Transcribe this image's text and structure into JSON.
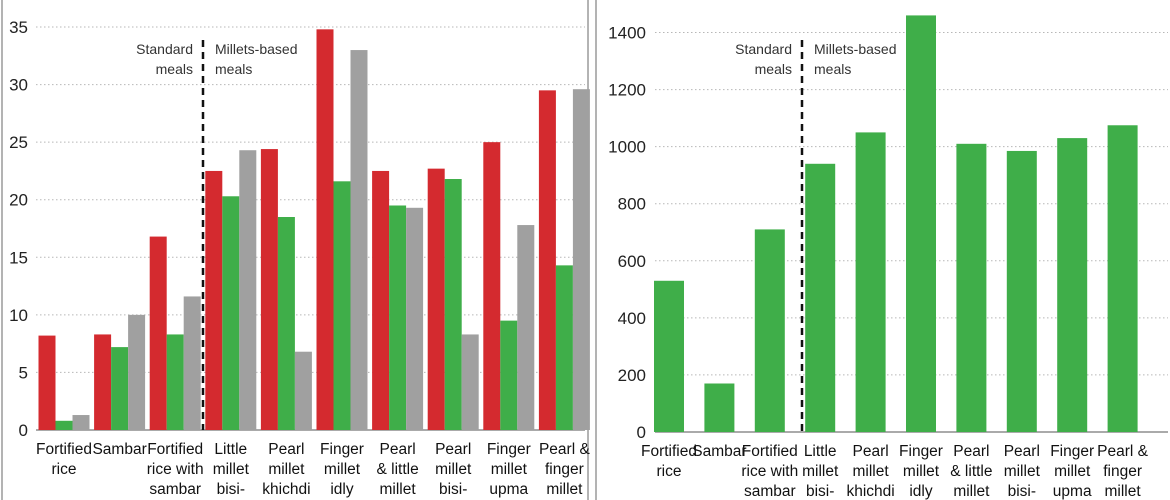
{
  "chart_data": [
    {
      "type": "bar",
      "categories": [
        [
          "Fortified",
          "rice"
        ],
        [
          "Sambar"
        ],
        [
          "Fortified",
          "rice with",
          "sambar"
        ],
        [
          "Little",
          "millet",
          "bisi-"
        ],
        [
          "Pearl",
          "millet",
          "khichdi"
        ],
        [
          "Finger",
          "millet",
          "idly"
        ],
        [
          "Pearl",
          "& little",
          "millet"
        ],
        [
          "Pearl",
          "millet",
          "bisi-"
        ],
        [
          "Finger",
          "millet",
          "upma"
        ],
        [
          "Pearl &",
          "finger",
          "millet"
        ]
      ],
      "series": [
        {
          "values": [
            8.2,
            8.3,
            16.8,
            22.5,
            24.4,
            34.8,
            22.5,
            22.7,
            25.0,
            29.5
          ]
        },
        {
          "values": [
            0.8,
            7.2,
            8.3,
            20.3,
            18.5,
            21.6,
            19.5,
            21.8,
            9.5,
            14.3
          ]
        },
        {
          "values": [
            1.3,
            10.0,
            11.6,
            24.3,
            6.8,
            33.0,
            19.3,
            8.3,
            17.8,
            29.6
          ]
        }
      ],
      "colors": [
        "#d42a2f",
        "#3fae49",
        "#a0a0a0"
      ],
      "ylim": [
        0,
        37
      ],
      "yticks": [
        0,
        5,
        10,
        15,
        20,
        25,
        30,
        35
      ],
      "grid": true,
      "annotations": {
        "left": [
          "Standard",
          "meals"
        ],
        "right": [
          "Millets-based",
          "meals"
        ]
      }
    },
    {
      "type": "bar",
      "categories": [
        [
          "Fortified",
          "rice"
        ],
        [
          "Sambar"
        ],
        [
          "Fortified",
          "rice with",
          "sambar"
        ],
        [
          "Little",
          "millet",
          "bisi-"
        ],
        [
          "Pearl",
          "millet",
          "khichdi"
        ],
        [
          "Finger",
          "millet",
          "idly"
        ],
        [
          "Pearl",
          "& little",
          "millet"
        ],
        [
          "Pearl",
          "millet",
          "bisi-"
        ],
        [
          "Finger",
          "millet",
          "upma"
        ],
        [
          "Pearl &",
          "finger",
          "millet"
        ]
      ],
      "series": [
        {
          "values": [
            530,
            170,
            710,
            940,
            1050,
            1460,
            1010,
            985,
            1030,
            1075
          ]
        }
      ],
      "colors": [
        "#3fae49"
      ],
      "ylim": [
        0,
        1500
      ],
      "yticks": [
        0,
        200,
        400,
        600,
        800,
        1000,
        1200,
        1400
      ],
      "grid": true,
      "annotations": {
        "left": [
          "Standard",
          "meals"
        ],
        "right": [
          "Millets-based",
          "meals"
        ]
      }
    }
  ]
}
